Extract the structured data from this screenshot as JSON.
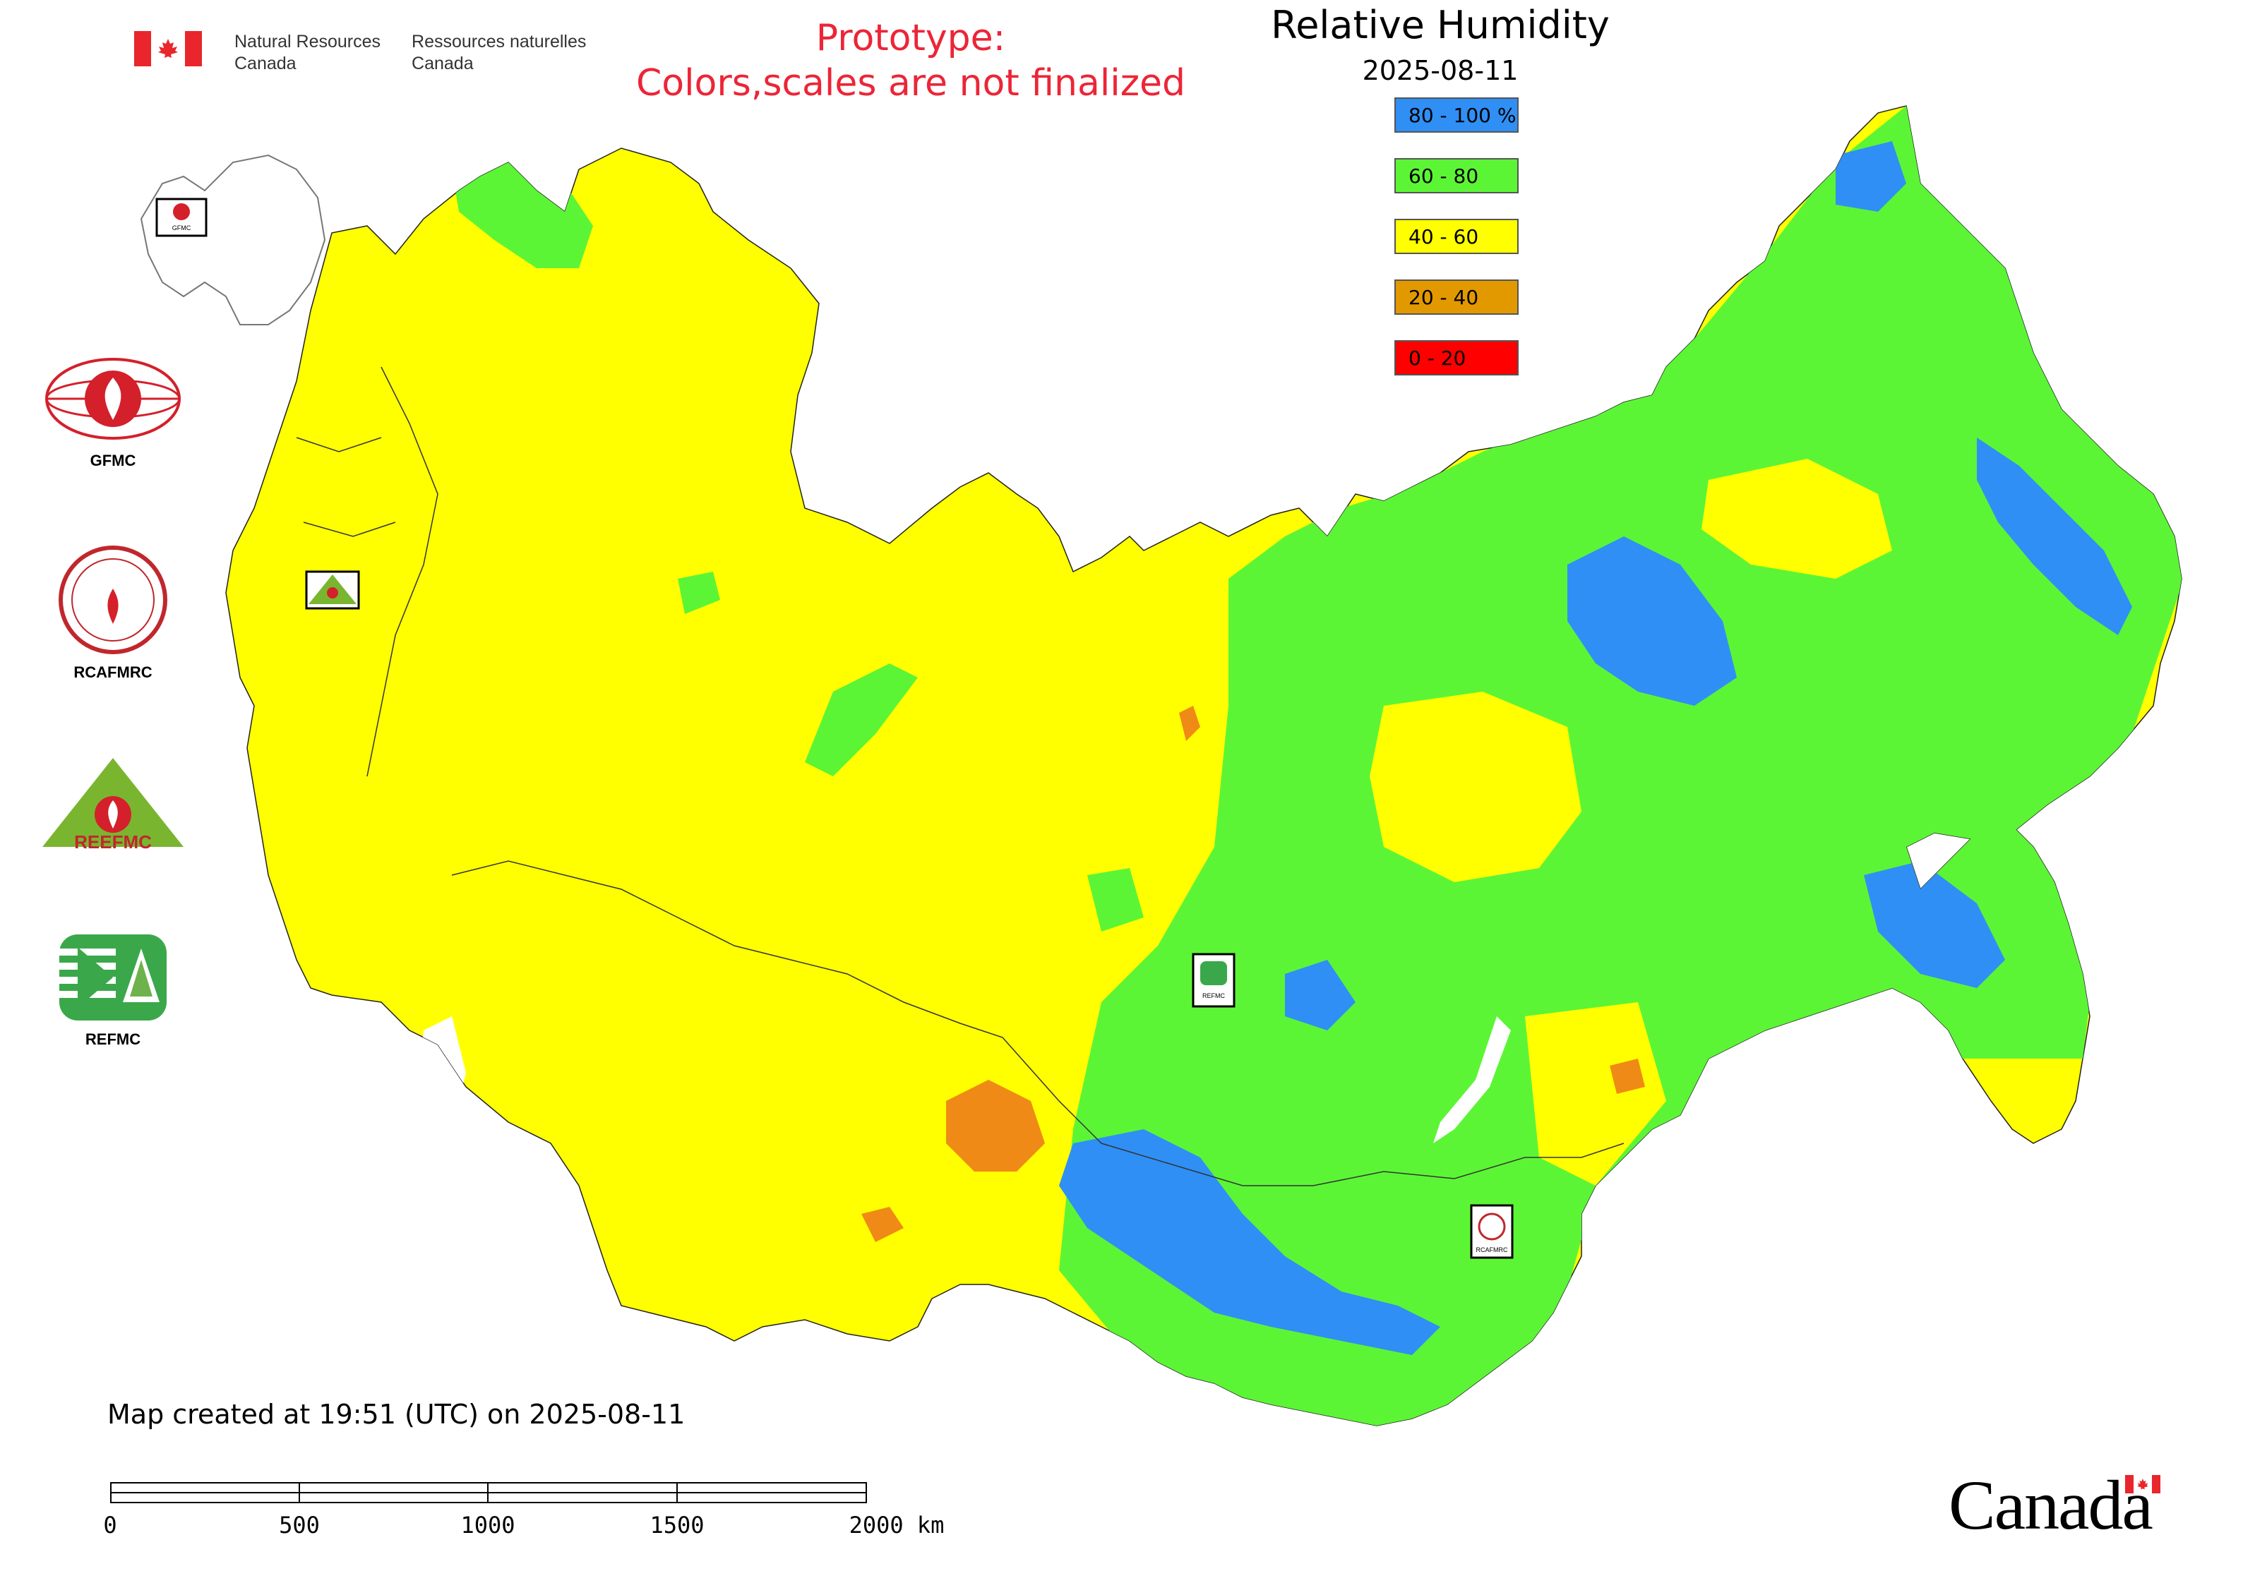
{
  "header": {
    "org_en": "Natural Resources\nCanada",
    "org_fr": "Ressources naturelles\nCanada"
  },
  "prototype_note": {
    "line1": "Prototype:",
    "line2": "Colors,scales are not finalized",
    "color": "#ec2537"
  },
  "title": "Relative Humidity",
  "date": "2025-08-11",
  "legend": [
    {
      "label": "80 - 100 %",
      "color": "#2f8ff5"
    },
    {
      "label": "60 - 80",
      "color": "#5cf536"
    },
    {
      "label": "40 - 60",
      "color": "#ffff00"
    },
    {
      "label": "20 - 40",
      "color": "#e29900"
    },
    {
      "label": "0 - 20",
      "color": "#ff0000"
    }
  ],
  "side_logos": [
    {
      "label": "GFMC",
      "icon": "gfmc-logo"
    },
    {
      "label": "RCAFMRC",
      "icon": "rcafmrc-logo"
    },
    {
      "label": "",
      "icon": "reefmc-logo",
      "wordmark": "REEFMC"
    },
    {
      "label": "REFMC",
      "icon": "refmc-logo"
    }
  ],
  "map_markers": [
    {
      "label": "GFMC",
      "icon": "gfmc-marker"
    },
    {
      "label": "REEFMC",
      "icon": "reefmc-marker"
    },
    {
      "label": "REFMC",
      "icon": "refmc-marker"
    },
    {
      "label": "RCAFMRC",
      "icon": "rcafmrc-marker"
    }
  ],
  "created_text": "Map created at 19:51 (UTC) on 2025-08-11",
  "scale": {
    "ticks": [
      "0",
      "500",
      "1000",
      "1500",
      "2000 km"
    ]
  },
  "wordmark": "Canada",
  "colors": {
    "blue": "#2f8ff5",
    "green": "#5cf536",
    "yellow": "#ffff00",
    "orange": "#f08a16",
    "border": "#333333"
  }
}
